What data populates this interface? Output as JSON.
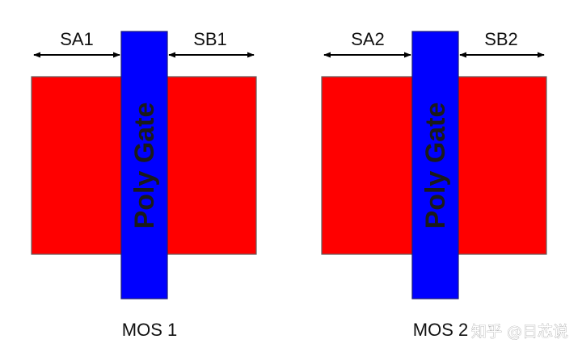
{
  "diagram": {
    "colors": {
      "diffusion": "#ff0000",
      "gate": "#0000ff",
      "outline": "#606060",
      "arrow": "#000000"
    },
    "devices": [
      {
        "sa_label": "SA1",
        "sb_label": "SB1",
        "gate_label": "Poly Gate",
        "caption": "MOS 1"
      },
      {
        "sa_label": "SA2",
        "sb_label": "SB2",
        "gate_label": "Poly Gate",
        "caption": "MOS 2"
      }
    ],
    "watermark": "知乎 @日芯说"
  }
}
